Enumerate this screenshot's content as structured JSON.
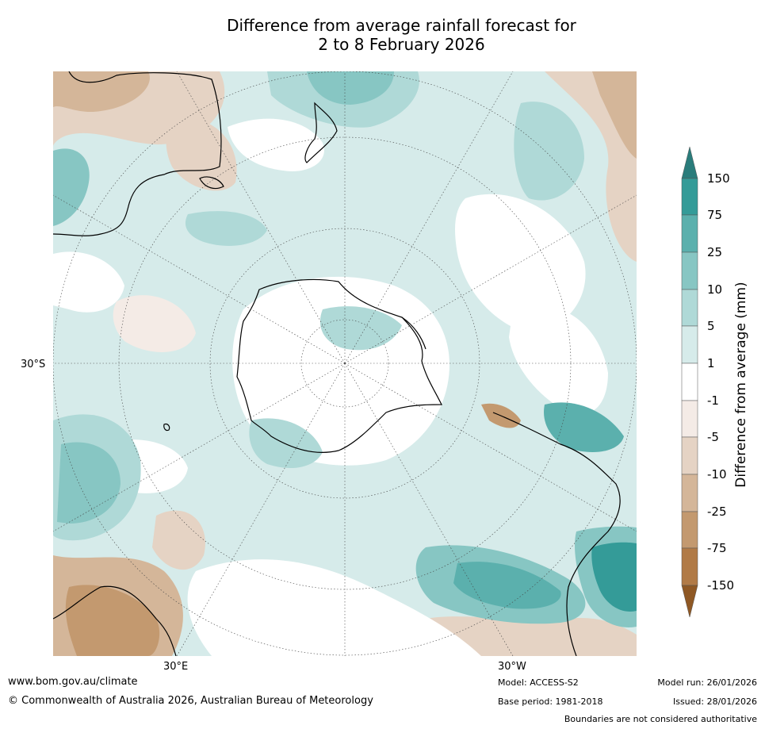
{
  "title": {
    "line1": "Difference from average rainfall forecast for",
    "line2": "2 to 8 February 2026"
  },
  "map": {
    "lat_label": "30°S",
    "lon_labels": [
      "30°E",
      "30°W"
    ]
  },
  "colorbar": {
    "label": "Difference from average (mm)",
    "ticks": [
      "150",
      "75",
      "25",
      "10",
      "5",
      "1",
      "-1",
      "-5",
      "-10",
      "-25",
      "-75",
      "-150"
    ],
    "colors": {
      "gt150": "#2a7c7b",
      "c75_150": "#349b98",
      "c25_75": "#5bb0ad",
      "c10_25": "#87c6c3",
      "c5_10": "#afd9d7",
      "c1_5": "#d6ebea",
      "neutral": "#ffffff",
      "n1_5": "#f4ebe6",
      "n5_10": "#e5d3c4",
      "n10_25": "#d4b699",
      "n25_75": "#c3996f",
      "n75_150": "#b17a46",
      "lt150": "#8f5824"
    }
  },
  "footer": {
    "website": "www.bom.gov.au/climate",
    "copyright": "© Commonwealth of Australia 2026, Australian Bureau of Meteorology",
    "model": "Model: ACCESS-S2",
    "base_period": "Base period: 1981-2018",
    "model_run": "Model run: 26/01/2026",
    "issued": "Issued: 28/01/2026",
    "disclaimer": "Boundaries are not considered authoritative"
  }
}
